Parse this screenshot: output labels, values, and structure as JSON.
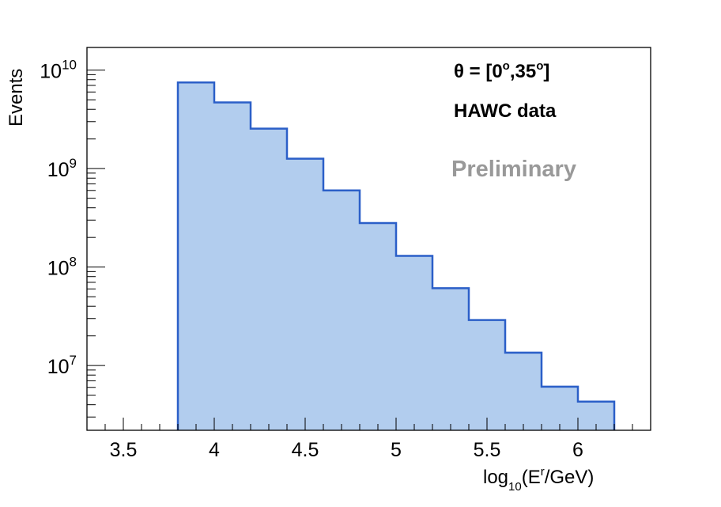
{
  "chart_data": {
    "type": "bar",
    "histogram": true,
    "xlabel": {
      "base": "log",
      "sub": "10",
      "open": "(E",
      "sup": "r",
      "close": "/GeV)"
    },
    "ylabel": "Events",
    "x_tick_labels": [
      "3.5",
      "4",
      "4.5",
      "5",
      "5.5",
      "6"
    ],
    "x_ticks": [
      3.5,
      4,
      4.5,
      5,
      5.5,
      6
    ],
    "y_tick_labels": [
      {
        "base": "10",
        "exp": "7",
        "value": 10000000
      },
      {
        "base": "10",
        "exp": "8",
        "value": 100000000
      },
      {
        "base": "10",
        "exp": "9",
        "value": 1000000000
      },
      {
        "base": "10",
        "exp": "10",
        "value": 10000000000
      }
    ],
    "xlim": [
      3.3,
      6.4
    ],
    "ylim": [
      2200000,
      17000000000
    ],
    "yscale": "log",
    "grid": false,
    "bin_edges": [
      3.8,
      4.0,
      4.2,
      4.4,
      4.6,
      4.8,
      5.0,
      5.2,
      5.4,
      5.6,
      5.8,
      6.0,
      6.2
    ],
    "values": [
      7500000000,
      4700000000,
      2550000000,
      1260000000,
      600000000,
      280000000,
      130000000,
      61000000,
      29000000,
      13500000,
      6100000,
      4300000
    ],
    "fill_color": "#b2cdee",
    "line_color": "#2b5fc8",
    "annotations": {
      "theta_label": "θ = [0",
      "theta_deg": "o",
      "theta_mid": ",35",
      "theta_deg2": "o",
      "theta_end": "]",
      "dataset": "HAWC data",
      "preliminary": "Preliminary"
    }
  }
}
